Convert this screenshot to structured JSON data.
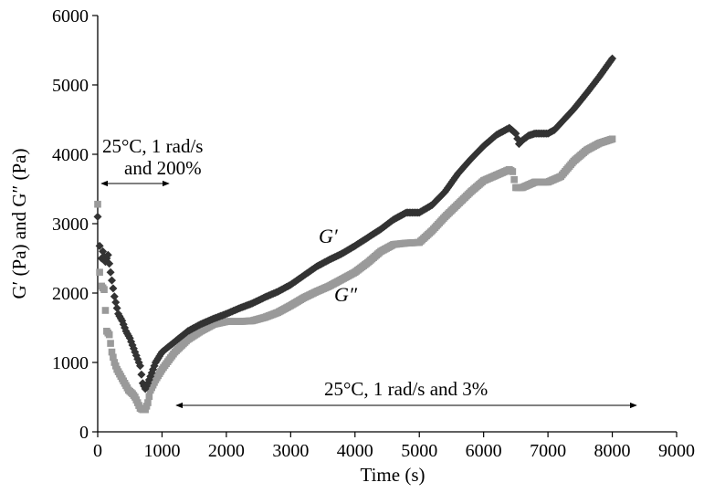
{
  "chart_data": {
    "type": "scatter",
    "xlabel": "Time (s)",
    "ylabel": "G′ (Pa) and G″ (Pa)",
    "xlim": [
      0,
      9000
    ],
    "ylim": [
      0,
      6000
    ],
    "x_ticks": [
      "0",
      "1000",
      "2000",
      "3000",
      "4000",
      "5000",
      "6000",
      "7000",
      "8000",
      "9000"
    ],
    "y_ticks": [
      "0",
      "1000",
      "2000",
      "3000",
      "4000",
      "5000",
      "6000"
    ],
    "grid": false,
    "legend": "none",
    "colors": {
      "G_prime": "#333333",
      "G_double_prime": "#9a9a9a"
    },
    "annotations": [
      {
        "text": "25°C, 1 rad/s",
        "x_from": 0,
        "x_to": 1150,
        "y": 3590
      },
      {
        "text": "and 200%"
      },
      {
        "text": "25°C, 1 rad/s and 3%",
        "x_from": 1150,
        "x_to": 8420,
        "y": 360
      }
    ],
    "series": [
      {
        "name": "G′",
        "marker": "diamond",
        "points": [
          [
            0,
            3100
          ],
          [
            30,
            2680
          ],
          [
            60,
            2500
          ],
          [
            80,
            2600
          ],
          [
            120,
            2450
          ],
          [
            160,
            2550
          ],
          [
            200,
            2300
          ],
          [
            260,
            1950
          ],
          [
            320,
            1700
          ],
          [
            380,
            1600
          ],
          [
            440,
            1450
          ],
          [
            500,
            1350
          ],
          [
            560,
            1200
          ],
          [
            600,
            1100
          ],
          [
            640,
            1000
          ],
          [
            660,
            950
          ],
          [
            700,
            700
          ],
          [
            740,
            620
          ],
          [
            780,
            700
          ],
          [
            820,
            800
          ],
          [
            900,
            1000
          ],
          [
            1000,
            1150
          ],
          [
            1200,
            1300
          ],
          [
            1400,
            1450
          ],
          [
            1600,
            1550
          ],
          [
            1800,
            1630
          ],
          [
            2000,
            1700
          ],
          [
            2200,
            1780
          ],
          [
            2400,
            1850
          ],
          [
            2600,
            1940
          ],
          [
            2800,
            2020
          ],
          [
            3000,
            2120
          ],
          [
            3200,
            2250
          ],
          [
            3400,
            2380
          ],
          [
            3600,
            2480
          ],
          [
            3800,
            2570
          ],
          [
            4000,
            2680
          ],
          [
            4200,
            2800
          ],
          [
            4400,
            2920
          ],
          [
            4600,
            3060
          ],
          [
            4800,
            3160
          ],
          [
            5000,
            3160
          ],
          [
            5200,
            3270
          ],
          [
            5400,
            3460
          ],
          [
            5600,
            3720
          ],
          [
            5800,
            3930
          ],
          [
            6000,
            4120
          ],
          [
            6200,
            4280
          ],
          [
            6400,
            4380
          ],
          [
            6500,
            4300
          ],
          [
            6550,
            4150
          ],
          [
            6600,
            4200
          ],
          [
            6700,
            4270
          ],
          [
            6800,
            4300
          ],
          [
            7000,
            4300
          ],
          [
            7100,
            4350
          ],
          [
            7200,
            4450
          ],
          [
            7400,
            4650
          ],
          [
            7600,
            4880
          ],
          [
            7800,
            5120
          ],
          [
            8000,
            5380
          ]
        ]
      },
      {
        "name": "G″",
        "marker": "square",
        "points": [
          [
            0,
            3280
          ],
          [
            30,
            2300
          ],
          [
            60,
            2100
          ],
          [
            100,
            2050
          ],
          [
            140,
            1450
          ],
          [
            180,
            1400
          ],
          [
            220,
            1150
          ],
          [
            260,
            1000
          ],
          [
            300,
            900
          ],
          [
            360,
            800
          ],
          [
            420,
            700
          ],
          [
            480,
            600
          ],
          [
            540,
            550
          ],
          [
            580,
            500
          ],
          [
            620,
            420
          ],
          [
            660,
            340
          ],
          [
            700,
            320
          ],
          [
            740,
            320
          ],
          [
            780,
            420
          ],
          [
            820,
            600
          ],
          [
            900,
            750
          ],
          [
            1000,
            900
          ],
          [
            1200,
            1150
          ],
          [
            1400,
            1330
          ],
          [
            1600,
            1450
          ],
          [
            1800,
            1550
          ],
          [
            2000,
            1590
          ],
          [
            2200,
            1590
          ],
          [
            2400,
            1600
          ],
          [
            2600,
            1650
          ],
          [
            2800,
            1720
          ],
          [
            3000,
            1820
          ],
          [
            3200,
            1930
          ],
          [
            3400,
            2020
          ],
          [
            3600,
            2100
          ],
          [
            3800,
            2200
          ],
          [
            4000,
            2300
          ],
          [
            4200,
            2440
          ],
          [
            4400,
            2600
          ],
          [
            4600,
            2700
          ],
          [
            4800,
            2720
          ],
          [
            5000,
            2730
          ],
          [
            5200,
            2900
          ],
          [
            5400,
            3100
          ],
          [
            5600,
            3280
          ],
          [
            5800,
            3460
          ],
          [
            6000,
            3620
          ],
          [
            6200,
            3700
          ],
          [
            6400,
            3780
          ],
          [
            6450,
            3750
          ],
          [
            6500,
            3520
          ],
          [
            6600,
            3520
          ],
          [
            6700,
            3560
          ],
          [
            6800,
            3600
          ],
          [
            7000,
            3600
          ],
          [
            7200,
            3680
          ],
          [
            7400,
            3900
          ],
          [
            7600,
            4060
          ],
          [
            7800,
            4160
          ],
          [
            8000,
            4220
          ]
        ]
      }
    ]
  }
}
